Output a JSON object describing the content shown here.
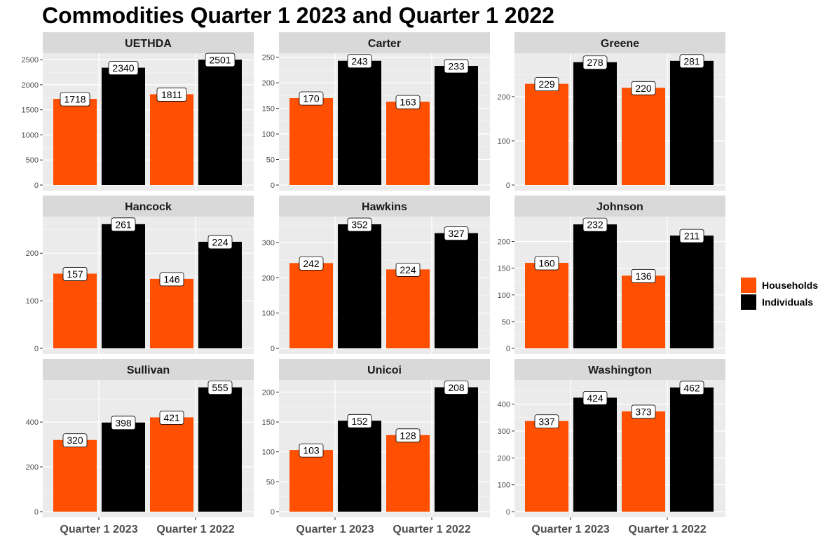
{
  "chart_data": {
    "type": "bar",
    "title": "Commodities Quarter 1 2023 and Quarter 1 2022",
    "categories": [
      "Quarter 1 2023",
      "Quarter 1 2022"
    ],
    "series_names": [
      "Households",
      "Individuals"
    ],
    "colors": {
      "Households": "#FF4F00",
      "Individuals": "#000000"
    },
    "legend_position": "right",
    "grid": true,
    "panels": [
      {
        "name": "UETHDA",
        "ticks": [
          "0",
          "500",
          "1000",
          "1500",
          "2000",
          "2500"
        ],
        "ylim": [
          0,
          2600
        ],
        "values": {
          "Households": [
            1718,
            1811
          ],
          "Individuals": [
            2340,
            2501
          ]
        }
      },
      {
        "name": "Carter",
        "ticks": [
          "0",
          "50",
          "100",
          "150",
          "200",
          "250"
        ],
        "ylim": [
          0,
          255
        ],
        "values": {
          "Households": [
            170,
            163
          ],
          "Individuals": [
            243,
            233
          ]
        }
      },
      {
        "name": "Greene",
        "ticks": [
          "0",
          "100",
          "200"
        ],
        "ylim": [
          0,
          295
        ],
        "values": {
          "Households": [
            229,
            220
          ],
          "Individuals": [
            278,
            281
          ]
        }
      },
      {
        "name": "Hancock",
        "ticks": [
          "0",
          "100",
          "200"
        ],
        "ylim": [
          0,
          274
        ],
        "values": {
          "Households": [
            157,
            146
          ],
          "Individuals": [
            261,
            224
          ]
        }
      },
      {
        "name": "Hawkins",
        "ticks": [
          "0",
          "100",
          "200",
          "300"
        ],
        "ylim": [
          0,
          370
        ],
        "values": {
          "Households": [
            242,
            224
          ],
          "Individuals": [
            352,
            327
          ]
        }
      },
      {
        "name": "Johnson",
        "ticks": [
          "0",
          "50",
          "100",
          "150",
          "200"
        ],
        "ylim": [
          0,
          244
        ],
        "values": {
          "Households": [
            160,
            136
          ],
          "Individuals": [
            232,
            211
          ]
        }
      },
      {
        "name": "Sullivan",
        "ticks": [
          "0",
          "200",
          "400"
        ],
        "ylim": [
          0,
          582
        ],
        "values": {
          "Households": [
            320,
            421
          ],
          "Individuals": [
            398,
            555
          ]
        }
      },
      {
        "name": "Unicoi",
        "ticks": [
          "0",
          "50",
          "100",
          "150",
          "200"
        ],
        "ylim": [
          0,
          218
        ],
        "values": {
          "Households": [
            103,
            128
          ],
          "Individuals": [
            152,
            208
          ]
        }
      },
      {
        "name": "Washington",
        "ticks": [
          "0",
          "100",
          "200",
          "300",
          "400"
        ],
        "ylim": [
          0,
          485
        ],
        "values": {
          "Households": [
            337,
            373
          ],
          "Individuals": [
            424,
            462
          ]
        }
      }
    ]
  }
}
